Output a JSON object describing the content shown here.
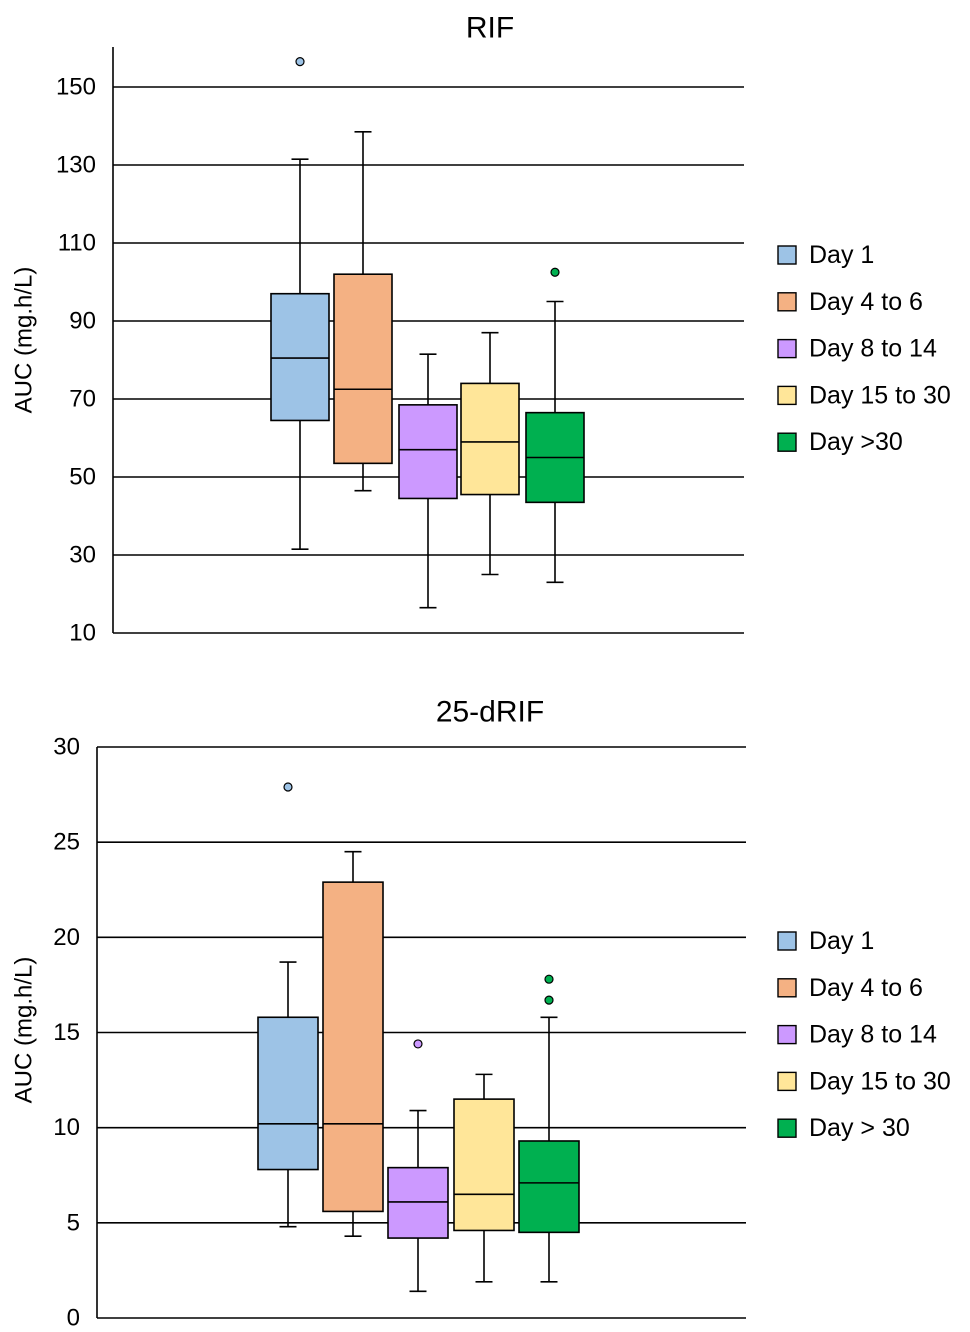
{
  "chart_data": [
    {
      "type": "box",
      "title": "RIF",
      "ylabel": "AUC (mg.h/L)",
      "xlabel": "",
      "ylim": [
        10,
        160
      ],
      "yticks": [
        10,
        30,
        50,
        70,
        90,
        110,
        130,
        150
      ],
      "grid": true,
      "legend_position": "right",
      "series": [
        {
          "name": "Day 1",
          "color": "#9dc3e6",
          "whisker_low": 31.5,
          "q1": 64.5,
          "median": 80.5,
          "q3": 97,
          "whisker_high": 131.5,
          "outliers": [
            156.5
          ]
        },
        {
          "name": "Day 4 to 6",
          "color": "#f4b183",
          "whisker_low": 46.5,
          "q1": 53.5,
          "median": 72.5,
          "q3": 102,
          "whisker_high": 138.5,
          "outliers": []
        },
        {
          "name": "Day 8 to 14",
          "color": "#cc99ff",
          "whisker_low": 16.5,
          "q1": 44.5,
          "median": 57,
          "q3": 68.5,
          "whisker_high": 81.5,
          "outliers": []
        },
        {
          "name": "Day 15 to 30",
          "color": "#ffe699",
          "whisker_low": 25,
          "q1": 45.5,
          "median": 59,
          "q3": 74,
          "whisker_high": 87,
          "outliers": []
        },
        {
          "name": "Day >30",
          "color": "#00b050",
          "whisker_low": 23,
          "q1": 43.5,
          "median": 55,
          "q3": 66.5,
          "whisker_high": 95,
          "outliers": [
            102.5
          ]
        }
      ]
    },
    {
      "type": "box",
      "title": "25-dRIF",
      "ylabel": "AUC (mg.h/L)",
      "xlabel": "",
      "ylim": [
        0,
        30
      ],
      "yticks": [
        0,
        5,
        10,
        15,
        20,
        25,
        30
      ],
      "grid": true,
      "legend_position": "right",
      "series": [
        {
          "name": "Day 1",
          "color": "#9dc3e6",
          "whisker_low": 4.8,
          "q1": 7.8,
          "median": 10.2,
          "q3": 15.8,
          "whisker_high": 18.7,
          "outliers": [
            27.9
          ]
        },
        {
          "name": "Day 4 to 6",
          "color": "#f4b183",
          "whisker_low": 4.3,
          "q1": 5.6,
          "median": 10.2,
          "q3": 22.9,
          "whisker_high": 24.5,
          "outliers": []
        },
        {
          "name": "Day 8 to 14",
          "color": "#cc99ff",
          "whisker_low": 1.4,
          "q1": 4.2,
          "median": 6.1,
          "q3": 7.9,
          "whisker_high": 10.9,
          "outliers": [
            14.4
          ]
        },
        {
          "name": "Day 15 to 30",
          "color": "#ffe699",
          "whisker_low": 1.9,
          "q1": 4.6,
          "median": 6.5,
          "q3": 11.5,
          "whisker_high": 12.8,
          "outliers": []
        },
        {
          "name": "Day > 30",
          "color": "#00b050",
          "whisker_low": 1.9,
          "q1": 4.5,
          "median": 7.1,
          "q3": 9.3,
          "whisker_high": 15.8,
          "outliers": [
            16.7,
            17.8
          ]
        }
      ]
    }
  ]
}
